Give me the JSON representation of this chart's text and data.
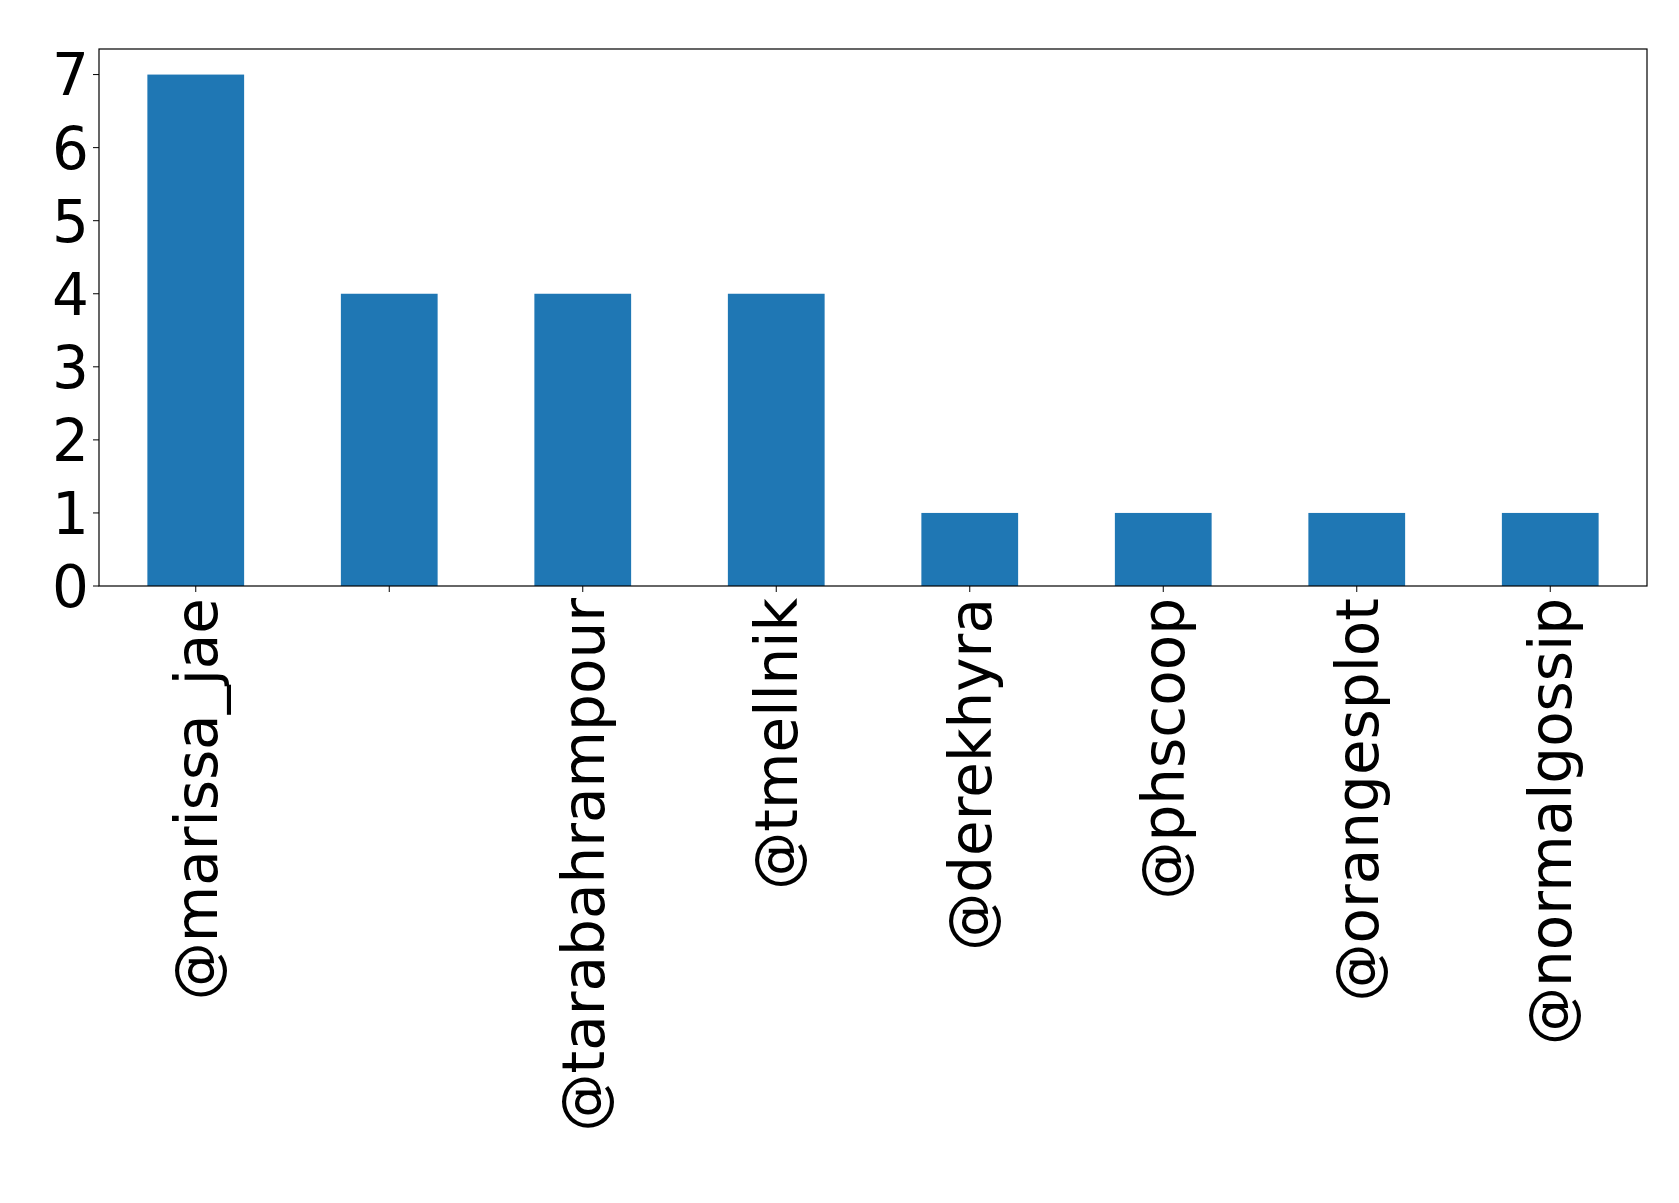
{
  "chart_data": {
    "type": "bar",
    "categories": [
      "@marissa_jae",
      null,
      "@tarabahrampour",
      "@tmellnik",
      "@derekhyra",
      "@phscoop",
      "@orangesplot",
      "@normalgossip"
    ],
    "values": [
      7,
      4,
      4,
      4,
      1,
      1,
      1,
      1
    ],
    "color": "#1f77b4",
    "ylim": [
      0,
      7.35
    ],
    "yticks": [
      0,
      1,
      2,
      3,
      4,
      5,
      6,
      7
    ],
    "grid": false
  }
}
